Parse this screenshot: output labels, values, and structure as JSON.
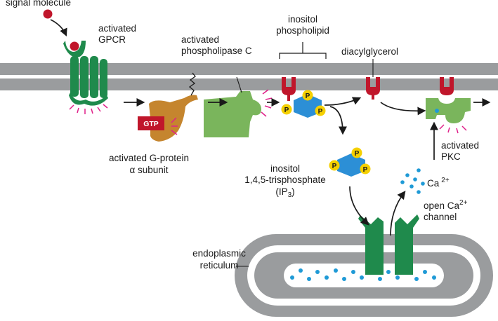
{
  "labels": {
    "signal_molecule": "signal molecule",
    "activated_gpcr_1": "activated",
    "activated_gpcr_2": "GPCR",
    "phospholipase_1": "activated",
    "phospholipase_2": "phospholipase C",
    "inositol_phospholipid_1": "inositol",
    "inositol_phospholipid_2": "phospholipid",
    "diacylglycerol": "diacylglycerol",
    "gtp": "GTP",
    "g_protein_1": "activated G-protein",
    "g_protein_2": "α subunit",
    "ip3_1": "inositol",
    "ip3_2": "1,4,5-trisphosphate",
    "ip3_3_prefix": "(IP",
    "ip3_3_sub": "3",
    "ip3_3_suffix": ")",
    "pkc_1": "activated",
    "pkc_2": "PKC",
    "ca_prefix": "Ca",
    "ca_sup": "2+",
    "open_channel_1_prefix": "open Ca",
    "open_channel_1_sup": "2+",
    "open_channel_2": "channel",
    "er_1": "endoplasmic",
    "er_2": "reticulum",
    "phosphate": "P"
  },
  "colors": {
    "membrane": "#9a9c9e",
    "er_membrane": "#9a9c9e",
    "gpcr": "#1f8a4c",
    "g_protein": "#c5852e",
    "gtp_box": "#c0162b",
    "enzyme": "#7ab55c",
    "lipid_head": "#c0162b",
    "hexagon": "#2c8fd6",
    "phosphate": "#f5d000",
    "calcium": "#1f9ad6",
    "signal": "#c0162b",
    "burst": "#e0218a",
    "channel": "#1f8a4c"
  }
}
